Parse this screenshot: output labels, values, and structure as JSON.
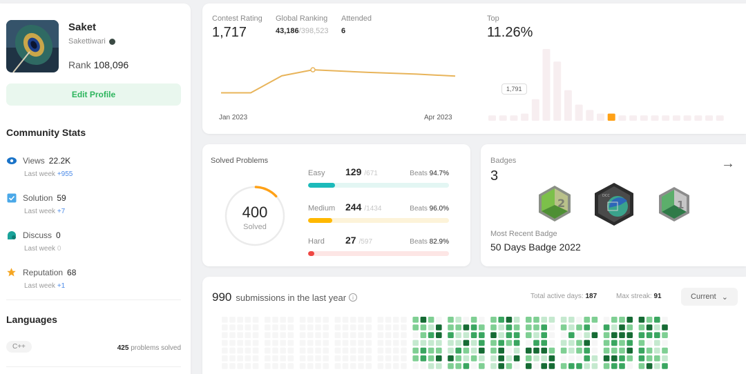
{
  "profile": {
    "name": "Saket",
    "handle": "Sakettiwari",
    "rank_label": "Rank",
    "rank_value": "108,096",
    "edit_label": "Edit Profile"
  },
  "community": {
    "title": "Community Stats",
    "items": [
      {
        "label": "Views",
        "value": "22.2K",
        "sub": "Last week",
        "delta": "+955",
        "icon": "eye-icon"
      },
      {
        "label": "Solution",
        "value": "59",
        "sub": "Last week",
        "delta": "+7",
        "icon": "check-square-icon"
      },
      {
        "label": "Discuss",
        "value": "0",
        "sub": "Last week",
        "delta": "0",
        "icon": "chat-icon"
      },
      {
        "label": "Reputation",
        "value": "68",
        "sub": "Last week",
        "delta": "+1",
        "icon": "star-icon"
      }
    ]
  },
  "languages": {
    "title": "Languages",
    "items": [
      {
        "name": "C++",
        "count": "425",
        "suffix": "problems solved"
      }
    ]
  },
  "contest": {
    "rating_label": "Contest Rating",
    "rating_value": "1,717",
    "global_label": "Global Ranking",
    "global_value": "43,186",
    "global_total": "/398,523",
    "attended_label": "Attended",
    "attended_value": "6",
    "top_label": "Top",
    "top_value": "11.26%",
    "tooltip": "1,791",
    "x_start": "Jan 2023",
    "x_end": "Apr 2023"
  },
  "chart_data": {
    "type": "line",
    "x": [
      "Jan 2023",
      "",
      "",
      "",
      "",
      "",
      "Apr 2023"
    ],
    "values": [
      1520,
      1520,
      1720,
      1791,
      1760,
      1740,
      1717
    ]
  },
  "histogram": {
    "values": [
      3,
      3,
      3,
      4,
      12,
      40,
      33,
      17,
      9,
      6,
      4,
      4,
      3,
      3,
      3,
      3,
      3,
      3,
      3,
      3,
      3,
      3
    ],
    "highlight_index": 11,
    "colors": {
      "bar": "#f7eef0",
      "highlight": "#ffa116"
    }
  },
  "solved": {
    "title": "Solved Problems",
    "total": "400",
    "total_label": "Solved",
    "progress": 0.125,
    "difficulties": [
      {
        "name": "Easy",
        "solved": "129",
        "total": "/671",
        "beats_label": "Beats",
        "beats": "94.7%",
        "fraction": 0.192,
        "color": "#1cbaba",
        "track": "#e3f6f3"
      },
      {
        "name": "Medium",
        "solved": "244",
        "total": "/1434",
        "beats_label": "Beats",
        "beats": "96.0%",
        "fraction": 0.17,
        "color": "#ffb800",
        "track": "#fdf3d9"
      },
      {
        "name": "Hard",
        "solved": "27",
        "total": "/597",
        "beats_label": "Beats",
        "beats": "82.9%",
        "fraction": 0.045,
        "color": "#ef4743",
        "track": "#fde6e5"
      }
    ]
  },
  "badges": {
    "title": "Badges",
    "count": "3",
    "recent_label": "Most Recent Badge",
    "recent_value": "50 Days Badge 2022",
    "arrow": "→"
  },
  "submissions": {
    "count": "990",
    "text": "submissions in the last year",
    "active_label": "Total active days:",
    "active_value": "187",
    "streak_label": "Max streak:",
    "streak_value": "91",
    "select_value": "Current",
    "chevron": "⌄"
  }
}
